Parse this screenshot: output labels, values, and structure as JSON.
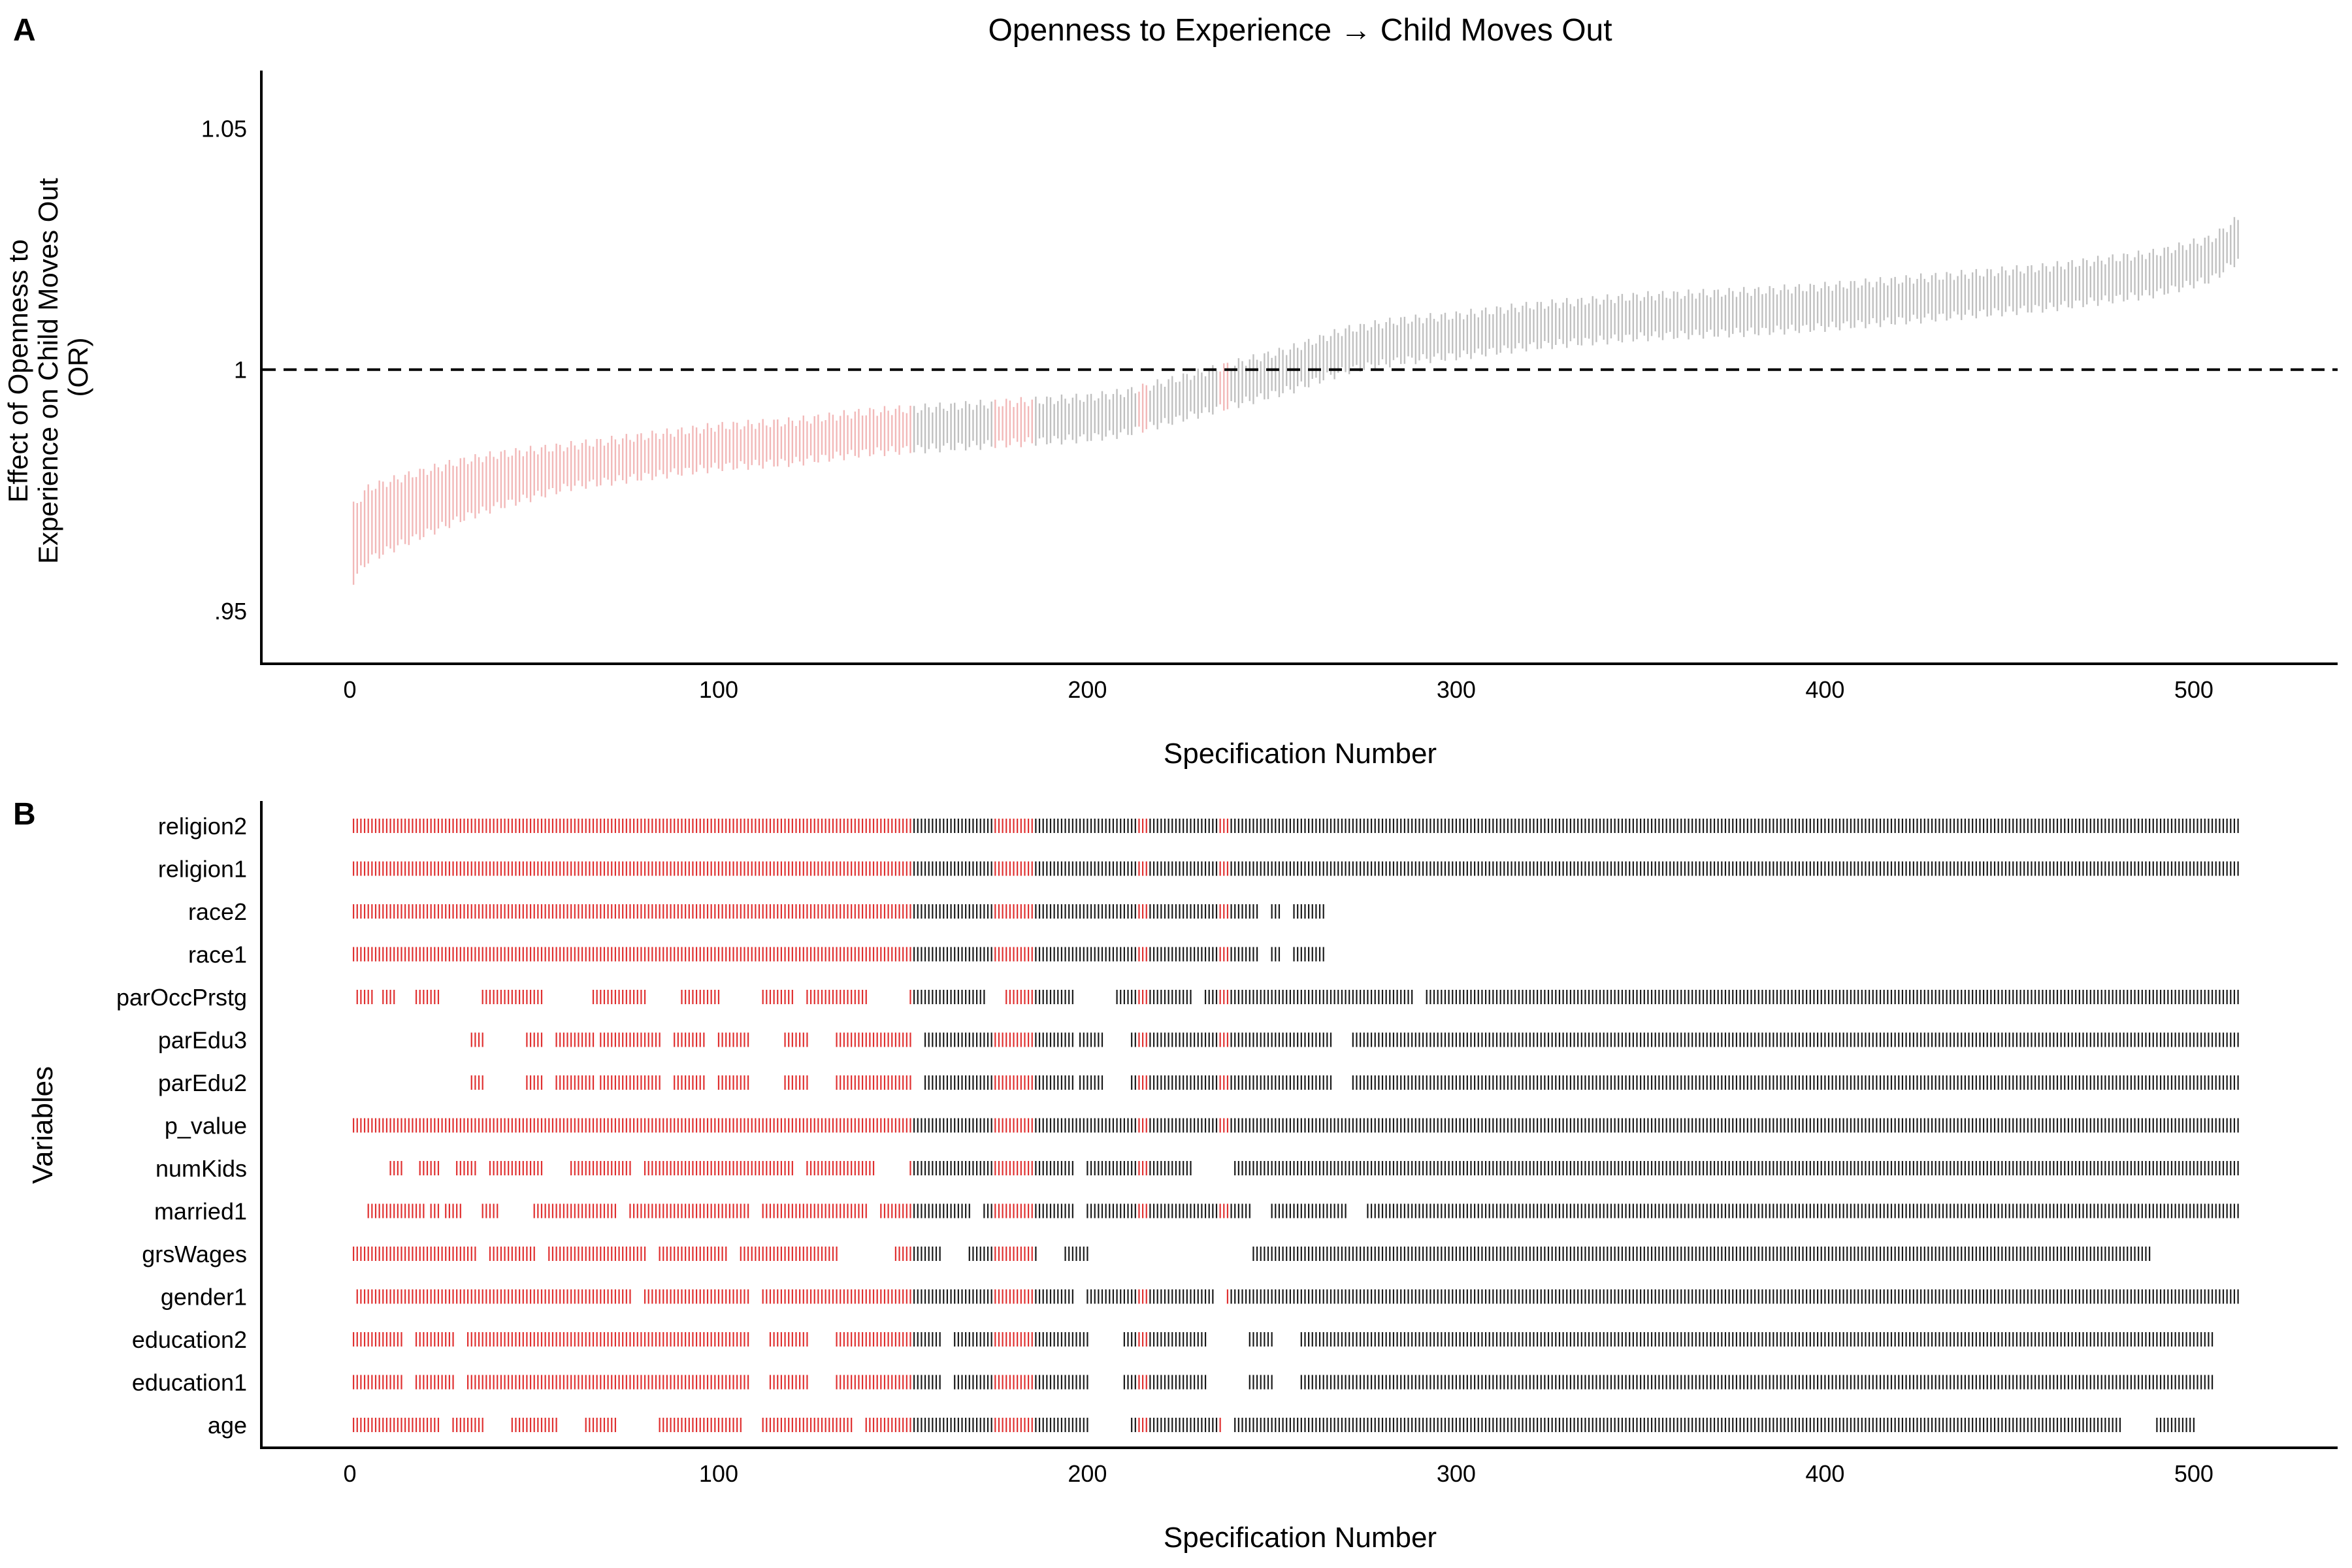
{
  "figure": {
    "panel_a_label": "A",
    "panel_b_label": "B"
  },
  "chart_data": [
    {
      "type": "scatter",
      "panel": "A",
      "title": "Openness to Experience → Child Moves Out",
      "xlabel": "Specification Number",
      "ylabel": "Effect of Openness to Experience on Child Moves Out (OR)",
      "ylabel_lines": [
        "Effect of Openness to",
        "Experience on Child Moves Out",
        "(OR)"
      ],
      "xlim": [
        -24,
        539
      ],
      "ylim": [
        0.939,
        1.062
      ],
      "x_ticks": [
        0,
        100,
        200,
        300,
        400,
        500
      ],
      "x_tick_labels": [
        "0",
        "100",
        "200",
        "300",
        "400",
        "500"
      ],
      "y_ticks": [
        0.95,
        1.0,
        1.05
      ],
      "y_tick_labels": [
        ".95",
        "1",
        "1.05"
      ],
      "reference_line": {
        "y": 1,
        "style": "dashed"
      },
      "n_specifications": 512,
      "grid": false,
      "legend": "none",
      "colors": {
        "significant": "#f2b8b8",
        "nonsignificant": "#c0c0c0"
      },
      "estimate_curve": [
        [
          1,
          0.964
        ],
        [
          5,
          0.968
        ],
        [
          15,
          0.971
        ],
        [
          30,
          0.975
        ],
        [
          40,
          0.977
        ],
        [
          60,
          0.98
        ],
        [
          80,
          0.982
        ],
        [
          100,
          0.984
        ],
        [
          120,
          0.985
        ],
        [
          140,
          0.987
        ],
        [
          160,
          0.988
        ],
        [
          180,
          0.989
        ],
        [
          200,
          0.99
        ],
        [
          210,
          0.991
        ],
        [
          220,
          0.993
        ],
        [
          240,
          0.997
        ],
        [
          255,
          1.0
        ],
        [
          270,
          1.004
        ],
        [
          285,
          1.006
        ],
        [
          300,
          1.007
        ],
        [
          320,
          1.009
        ],
        [
          350,
          1.011
        ],
        [
          380,
          1.012
        ],
        [
          400,
          1.013
        ],
        [
          430,
          1.015
        ],
        [
          460,
          1.017
        ],
        [
          490,
          1.02
        ],
        [
          505,
          1.023
        ],
        [
          512,
          1.027
        ]
      ],
      "significant_ranges": [
        [
          1,
          152
        ],
        [
          175,
          185
        ],
        [
          214,
          216
        ],
        [
          236,
          238
        ]
      ]
    },
    {
      "type": "heatmap",
      "panel": "B",
      "xlabel": "Specification Number",
      "ylabel": "Variables",
      "xlim": [
        -24,
        539
      ],
      "x_ticks": [
        0,
        100,
        200,
        300,
        400,
        500
      ],
      "x_tick_labels": [
        "0",
        "100",
        "200",
        "300",
        "400",
        "500"
      ],
      "variables": [
        "religion2",
        "religion1",
        "race2",
        "race1",
        "parOccPrstg",
        "parEdu3",
        "parEdu2",
        "p_value",
        "numKids",
        "married1",
        "grsWages",
        "gender1",
        "education2",
        "education1",
        "age"
      ],
      "colors": {
        "included_significant": "#e03030",
        "included_nonsignificant": "#1a1a1a"
      },
      "legend": "none",
      "included_ranges": {
        "religion2": [
          [
            1,
            512
          ]
        ],
        "religion1": [
          [
            1,
            512
          ]
        ],
        "race2": [
          [
            1,
            246
          ],
          [
            250,
            252
          ],
          [
            256,
            264
          ]
        ],
        "race1": [
          [
            1,
            246
          ],
          [
            250,
            252
          ],
          [
            256,
            264
          ]
        ],
        "parOccPrstg": [
          [
            2,
            6
          ],
          [
            9,
            12
          ],
          [
            18,
            24
          ],
          [
            36,
            52
          ],
          [
            66,
            80
          ],
          [
            90,
            100
          ],
          [
            112,
            120
          ],
          [
            124,
            140
          ],
          [
            152,
            172
          ],
          [
            178,
            196
          ],
          [
            208,
            228
          ],
          [
            232,
            288
          ],
          [
            292,
            512
          ]
        ],
        "parEdu3": [
          [
            33,
            36
          ],
          [
            48,
            52
          ],
          [
            56,
            66
          ],
          [
            68,
            84
          ],
          [
            88,
            96
          ],
          [
            100,
            108
          ],
          [
            118,
            124
          ],
          [
            132,
            152
          ],
          [
            156,
            196
          ],
          [
            198,
            204
          ],
          [
            212,
            266
          ],
          [
            272,
            512
          ]
        ],
        "parEdu2": [
          [
            33,
            36
          ],
          [
            48,
            52
          ],
          [
            56,
            66
          ],
          [
            68,
            84
          ],
          [
            88,
            96
          ],
          [
            100,
            108
          ],
          [
            118,
            124
          ],
          [
            132,
            152
          ],
          [
            156,
            196
          ],
          [
            198,
            204
          ],
          [
            212,
            266
          ],
          [
            272,
            512
          ]
        ],
        "p_value": [
          [
            1,
            512
          ]
        ],
        "numKids": [
          [
            11,
            14
          ],
          [
            19,
            24
          ],
          [
            29,
            34
          ],
          [
            38,
            52
          ],
          [
            60,
            76
          ],
          [
            80,
            120
          ],
          [
            124,
            142
          ],
          [
            152,
            196
          ],
          [
            200,
            228
          ],
          [
            240,
            512
          ]
        ],
        "married1": [
          [
            5,
            20
          ],
          [
            22,
            24
          ],
          [
            26,
            30
          ],
          [
            36,
            40
          ],
          [
            50,
            72
          ],
          [
            76,
            108
          ],
          [
            112,
            140
          ],
          [
            144,
            168
          ],
          [
            172,
            196
          ],
          [
            200,
            244
          ],
          [
            250,
            270
          ],
          [
            276,
            512
          ]
        ],
        "grsWages": [
          [
            1,
            34
          ],
          [
            38,
            50
          ],
          [
            54,
            80
          ],
          [
            84,
            102
          ],
          [
            106,
            132
          ],
          [
            148,
            160
          ],
          [
            168,
            186
          ],
          [
            194,
            200
          ],
          [
            245,
            488
          ]
        ],
        "gender1": [
          [
            2,
            76
          ],
          [
            80,
            108
          ],
          [
            112,
            196
          ],
          [
            200,
            234
          ],
          [
            238,
            512
          ]
        ],
        "education2": [
          [
            1,
            14
          ],
          [
            18,
            28
          ],
          [
            32,
            108
          ],
          [
            114,
            124
          ],
          [
            132,
            160
          ],
          [
            164,
            200
          ],
          [
            210,
            232
          ],
          [
            244,
            250
          ],
          [
            258,
            505
          ]
        ],
        "education1": [
          [
            1,
            14
          ],
          [
            18,
            28
          ],
          [
            32,
            108
          ],
          [
            114,
            124
          ],
          [
            132,
            160
          ],
          [
            164,
            200
          ],
          [
            210,
            232
          ],
          [
            244,
            250
          ],
          [
            258,
            505
          ]
        ],
        "age": [
          [
            1,
            24
          ],
          [
            28,
            36
          ],
          [
            44,
            56
          ],
          [
            64,
            72
          ],
          [
            84,
            106
          ],
          [
            112,
            136
          ],
          [
            140,
            200
          ],
          [
            212,
            236
          ],
          [
            240,
            480
          ],
          [
            490,
            500
          ]
        ]
      }
    }
  ]
}
